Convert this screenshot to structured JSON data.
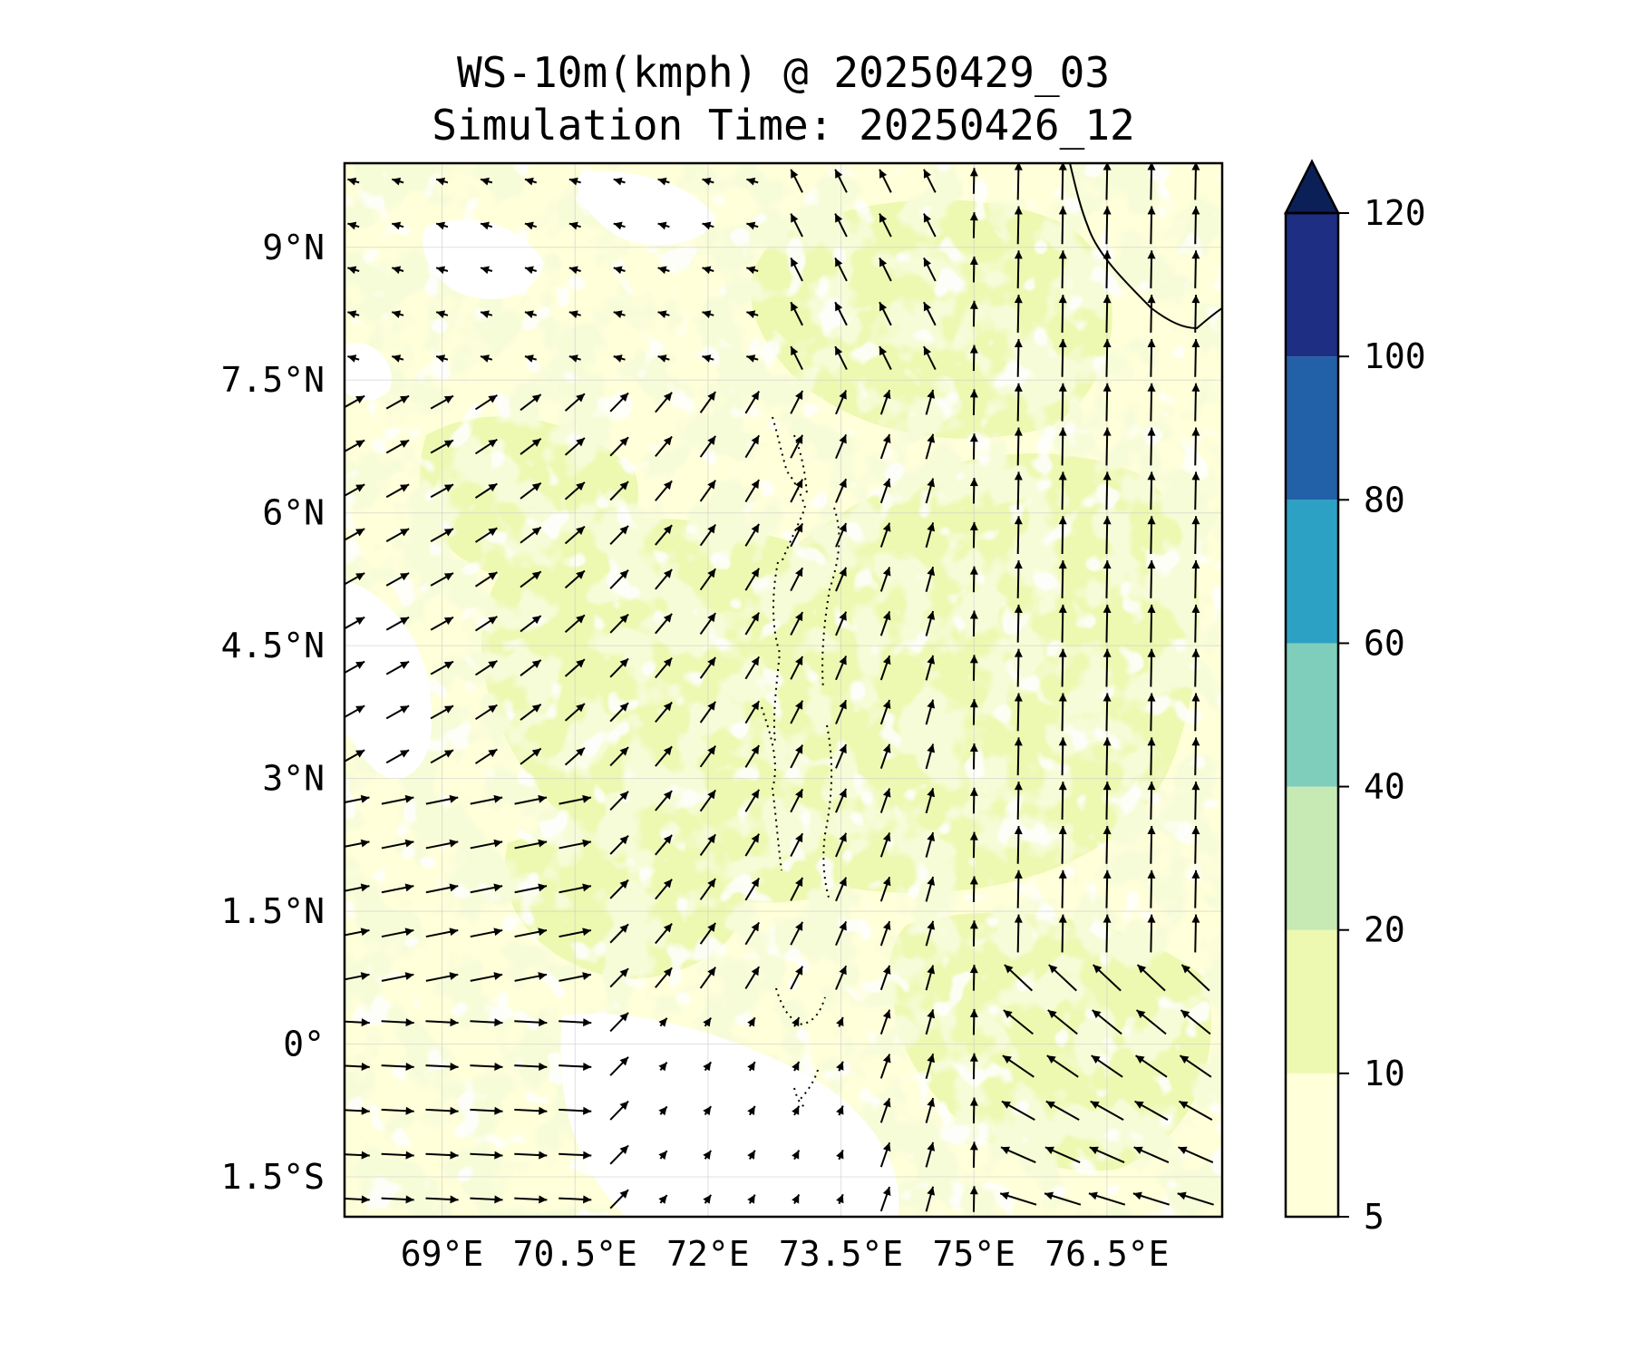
{
  "title": {
    "line1": "WS-10m(kmph) @ 20250429_03",
    "line2": "Simulation Time: 20250426_12"
  },
  "map": {
    "lon_range": [
      67.9,
      77.8
    ],
    "lat_range": [
      -1.95,
      9.95
    ],
    "lon_ticks": [
      {
        "value": 69,
        "label": "69°E"
      },
      {
        "value": 70.5,
        "label": "70.5°E"
      },
      {
        "value": 72,
        "label": "72°E"
      },
      {
        "value": 73.5,
        "label": "73.5°E"
      },
      {
        "value": 75,
        "label": "75°E"
      },
      {
        "value": 76.5,
        "label": "76.5°E"
      }
    ],
    "lat_ticks": [
      {
        "value": 9,
        "label": "9°N"
      },
      {
        "value": 7.5,
        "label": "7.5°N"
      },
      {
        "value": 6,
        "label": "6°N"
      },
      {
        "value": 4.5,
        "label": "4.5°N"
      },
      {
        "value": 3,
        "label": "3°N"
      },
      {
        "value": 1.5,
        "label": "1.5°N"
      },
      {
        "value": 0,
        "label": "0°"
      },
      {
        "value": -1.5,
        "label": "1.5°S"
      }
    ],
    "background_color": "#ffffd9",
    "band_10_20_color": "#edf8b1",
    "gridlines": true
  },
  "colorbar": {
    "levels": [
      {
        "label": "5"
      },
      {
        "label": "10"
      },
      {
        "label": "20"
      },
      {
        "label": "40"
      },
      {
        "label": "60"
      },
      {
        "label": "80"
      },
      {
        "label": "100"
      },
      {
        "label": "120"
      }
    ],
    "colors": [
      "#ffffd9",
      "#edf8b1",
      "#c7e9b4",
      "#7fcdbb",
      "#2ca1c4",
      "#2260a8",
      "#1e2e82"
    ],
    "extend_color": "#0c2058",
    "extend": "max"
  },
  "chart_data": {
    "type": "vector_field",
    "variable": "WS-10m(kmph)",
    "lon_ticks": [
      69,
      70.5,
      72,
      73.5,
      75,
      76.5
    ],
    "lat_ticks": [
      9,
      7.5,
      6,
      4.5,
      3,
      1.5,
      0,
      -1.5
    ],
    "colorbar_levels": [
      5,
      10,
      20,
      40,
      60,
      80,
      100,
      120
    ],
    "vector_grid_step_deg": 0.5,
    "field_summary": "Winds mostly 5-20 kmph; westerlies south of 3°N west of 71°E, turning northward east of 73°E; northwesterlies east of 75°E south of 1°N."
  }
}
